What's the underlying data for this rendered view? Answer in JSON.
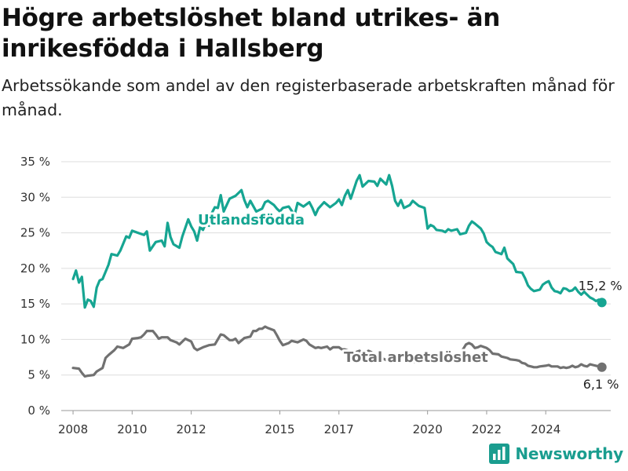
{
  "header": {
    "title": "Högre arbetslöshet bland utrikes- än inrikesfödda i Hallsberg",
    "subtitle": "Arbetssökande som andel av den registerbaserade arbetskraften månad för månad."
  },
  "brand": {
    "name": "Newsworthy",
    "icon": "bar-chart-logo-icon",
    "color": "#1a9d8f"
  },
  "chart_data": {
    "type": "line",
    "ylim": [
      0,
      35
    ],
    "xlim": [
      2007.6,
      2026.2
    ],
    "y_ticks": [
      0,
      5,
      10,
      15,
      20,
      25,
      30,
      35
    ],
    "y_tick_labels": [
      "0 %",
      "5 %",
      "10 %",
      "15 %",
      "20 %",
      "25 %",
      "30 %",
      "35 %"
    ],
    "x_ticks": [
      2008,
      2010,
      2012,
      2015,
      2017,
      2020,
      2022,
      2024
    ],
    "x_tick_labels": [
      "2008",
      "2010",
      "2012",
      "2015",
      "2017",
      "2020",
      "2022",
      "2024"
    ],
    "grid": true,
    "series": [
      {
        "name": "Utlandsfödda",
        "color": "#16a592",
        "end_label": "15,2 %",
        "points": [
          [
            2008.0,
            18.5
          ],
          [
            2008.1,
            19.7
          ],
          [
            2008.2,
            18.0
          ],
          [
            2008.3,
            18.8
          ],
          [
            2008.4,
            14.5
          ],
          [
            2008.5,
            15.6
          ],
          [
            2008.6,
            15.4
          ],
          [
            2008.7,
            14.6
          ],
          [
            2008.8,
            17.3
          ],
          [
            2008.9,
            18.3
          ],
          [
            2009.0,
            18.5
          ],
          [
            2009.2,
            20.5
          ],
          [
            2009.3,
            22.0
          ],
          [
            2009.5,
            21.8
          ],
          [
            2009.6,
            22.5
          ],
          [
            2009.8,
            24.5
          ],
          [
            2009.9,
            24.3
          ],
          [
            2010.0,
            25.3
          ],
          [
            2010.2,
            25.0
          ],
          [
            2010.4,
            24.7
          ],
          [
            2010.5,
            25.2
          ],
          [
            2010.6,
            22.5
          ],
          [
            2010.8,
            23.7
          ],
          [
            2011.0,
            23.9
          ],
          [
            2011.1,
            23.1
          ],
          [
            2011.2,
            26.4
          ],
          [
            2011.3,
            24.4
          ],
          [
            2011.4,
            23.4
          ],
          [
            2011.6,
            22.9
          ],
          [
            2011.7,
            24.5
          ],
          [
            2011.9,
            26.9
          ],
          [
            2012.0,
            25.9
          ],
          [
            2012.1,
            25.2
          ],
          [
            2012.2,
            23.9
          ],
          [
            2012.3,
            25.8
          ],
          [
            2012.4,
            25.4
          ],
          [
            2012.5,
            26.4
          ],
          [
            2012.6,
            26.0
          ],
          [
            2012.7,
            27.8
          ],
          [
            2012.8,
            28.6
          ],
          [
            2012.9,
            28.5
          ],
          [
            2013.0,
            30.3
          ],
          [
            2013.1,
            28.0
          ],
          [
            2013.3,
            29.8
          ],
          [
            2013.5,
            30.2
          ],
          [
            2013.6,
            30.6
          ],
          [
            2013.7,
            31.0
          ],
          [
            2013.8,
            29.6
          ],
          [
            2013.9,
            28.6
          ],
          [
            2014.0,
            29.5
          ],
          [
            2014.2,
            28.0
          ],
          [
            2014.4,
            28.4
          ],
          [
            2014.5,
            29.3
          ],
          [
            2014.6,
            29.5
          ],
          [
            2014.8,
            28.9
          ],
          [
            2014.9,
            28.4
          ],
          [
            2015.0,
            28.0
          ],
          [
            2015.1,
            28.5
          ],
          [
            2015.3,
            28.7
          ],
          [
            2015.5,
            27.5
          ],
          [
            2015.6,
            29.2
          ],
          [
            2015.8,
            28.7
          ],
          [
            2016.0,
            29.3
          ],
          [
            2016.1,
            28.5
          ],
          [
            2016.2,
            27.5
          ],
          [
            2016.3,
            28.4
          ],
          [
            2016.5,
            29.3
          ],
          [
            2016.7,
            28.6
          ],
          [
            2016.9,
            29.2
          ],
          [
            2017.0,
            29.7
          ],
          [
            2017.1,
            28.9
          ],
          [
            2017.2,
            30.2
          ],
          [
            2017.3,
            31.0
          ],
          [
            2017.4,
            29.8
          ],
          [
            2017.6,
            32.3
          ],
          [
            2017.7,
            33.1
          ],
          [
            2017.8,
            31.5
          ],
          [
            2018.0,
            32.3
          ],
          [
            2018.2,
            32.2
          ],
          [
            2018.3,
            31.6
          ],
          [
            2018.4,
            32.6
          ],
          [
            2018.6,
            31.8
          ],
          [
            2018.7,
            33.1
          ],
          [
            2018.8,
            31.6
          ],
          [
            2018.9,
            29.5
          ],
          [
            2019.0,
            28.8
          ],
          [
            2019.1,
            29.6
          ],
          [
            2019.2,
            28.5
          ],
          [
            2019.4,
            28.9
          ],
          [
            2019.5,
            29.5
          ],
          [
            2019.7,
            28.8
          ],
          [
            2019.9,
            28.5
          ],
          [
            2020.0,
            25.6
          ],
          [
            2020.1,
            26.1
          ],
          [
            2020.2,
            25.9
          ],
          [
            2020.3,
            25.4
          ],
          [
            2020.5,
            25.3
          ],
          [
            2020.6,
            25.1
          ],
          [
            2020.7,
            25.5
          ],
          [
            2020.8,
            25.3
          ],
          [
            2021.0,
            25.5
          ],
          [
            2021.1,
            24.8
          ],
          [
            2021.3,
            25.0
          ],
          [
            2021.4,
            26.0
          ],
          [
            2021.5,
            26.6
          ],
          [
            2021.6,
            26.3
          ],
          [
            2021.8,
            25.6
          ],
          [
            2021.9,
            24.9
          ],
          [
            2022.0,
            23.7
          ],
          [
            2022.1,
            23.3
          ],
          [
            2022.2,
            23.0
          ],
          [
            2022.3,
            22.3
          ],
          [
            2022.5,
            22.0
          ],
          [
            2022.6,
            22.9
          ],
          [
            2022.7,
            21.4
          ],
          [
            2022.8,
            21.0
          ],
          [
            2022.9,
            20.6
          ],
          [
            2023.0,
            19.5
          ],
          [
            2023.2,
            19.4
          ],
          [
            2023.3,
            18.6
          ],
          [
            2023.4,
            17.6
          ],
          [
            2023.5,
            17.1
          ],
          [
            2023.6,
            16.8
          ],
          [
            2023.7,
            16.9
          ],
          [
            2023.8,
            17.0
          ],
          [
            2023.9,
            17.7
          ],
          [
            2024.0,
            18.0
          ],
          [
            2024.1,
            18.2
          ],
          [
            2024.2,
            17.3
          ],
          [
            2024.3,
            16.8
          ],
          [
            2024.4,
            16.7
          ],
          [
            2024.5,
            16.5
          ],
          [
            2024.6,
            17.2
          ],
          [
            2024.7,
            17.1
          ],
          [
            2024.8,
            16.8
          ],
          [
            2024.9,
            16.9
          ],
          [
            2025.0,
            17.3
          ],
          [
            2025.1,
            16.7
          ],
          [
            2025.2,
            16.3
          ],
          [
            2025.3,
            16.7
          ],
          [
            2025.4,
            16.3
          ],
          [
            2025.5,
            15.9
          ],
          [
            2025.6,
            15.7
          ],
          [
            2025.7,
            15.4
          ],
          [
            2025.8,
            15.6
          ],
          [
            2025.9,
            15.2
          ]
        ]
      },
      {
        "name": "Total arbetslöshet",
        "color": "#717171",
        "end_label": "6,1 %",
        "points": [
          [
            2008.0,
            6.0
          ],
          [
            2008.2,
            5.9
          ],
          [
            2008.3,
            5.3
          ],
          [
            2008.4,
            4.8
          ],
          [
            2008.5,
            4.9
          ],
          [
            2008.7,
            5.0
          ],
          [
            2008.8,
            5.5
          ],
          [
            2009.0,
            6.0
          ],
          [
            2009.1,
            7.4
          ],
          [
            2009.2,
            7.8
          ],
          [
            2009.4,
            8.5
          ],
          [
            2009.5,
            9.0
          ],
          [
            2009.7,
            8.8
          ],
          [
            2009.9,
            9.3
          ],
          [
            2010.0,
            10.1
          ],
          [
            2010.2,
            10.2
          ],
          [
            2010.3,
            10.3
          ],
          [
            2010.4,
            10.7
          ],
          [
            2010.5,
            11.2
          ],
          [
            2010.7,
            11.2
          ],
          [
            2010.8,
            10.7
          ],
          [
            2010.9,
            10.1
          ],
          [
            2011.0,
            10.3
          ],
          [
            2011.2,
            10.3
          ],
          [
            2011.3,
            9.9
          ],
          [
            2011.5,
            9.6
          ],
          [
            2011.6,
            9.3
          ],
          [
            2011.7,
            9.7
          ],
          [
            2011.8,
            10.1
          ],
          [
            2012.0,
            9.7
          ],
          [
            2012.1,
            8.8
          ],
          [
            2012.2,
            8.5
          ],
          [
            2012.4,
            8.9
          ],
          [
            2012.6,
            9.2
          ],
          [
            2012.8,
            9.3
          ],
          [
            2013.0,
            10.7
          ],
          [
            2013.1,
            10.6
          ],
          [
            2013.3,
            9.9
          ],
          [
            2013.4,
            9.9
          ],
          [
            2013.5,
            10.1
          ],
          [
            2013.6,
            9.5
          ],
          [
            2013.8,
            10.2
          ],
          [
            2014.0,
            10.4
          ],
          [
            2014.1,
            11.2
          ],
          [
            2014.2,
            11.2
          ],
          [
            2014.3,
            11.5
          ],
          [
            2014.4,
            11.5
          ],
          [
            2014.5,
            11.8
          ],
          [
            2014.6,
            11.6
          ],
          [
            2014.8,
            11.3
          ],
          [
            2014.9,
            10.6
          ],
          [
            2015.0,
            9.8
          ],
          [
            2015.1,
            9.2
          ],
          [
            2015.3,
            9.5
          ],
          [
            2015.4,
            9.8
          ],
          [
            2015.6,
            9.6
          ],
          [
            2015.8,
            10.0
          ],
          [
            2015.9,
            9.8
          ],
          [
            2016.0,
            9.3
          ],
          [
            2016.2,
            8.8
          ],
          [
            2016.3,
            8.9
          ],
          [
            2016.4,
            8.8
          ],
          [
            2016.6,
            9.0
          ],
          [
            2016.7,
            8.6
          ],
          [
            2016.8,
            8.9
          ],
          [
            2017.0,
            8.9
          ],
          [
            2017.1,
            8.6
          ],
          [
            2017.2,
            8.6
          ],
          [
            2017.4,
            8.3
          ],
          [
            2017.5,
            8.1
          ],
          [
            2017.7,
            8.4
          ],
          [
            2017.8,
            7.9
          ],
          [
            2018.0,
            8.4
          ],
          [
            2018.1,
            8.2
          ],
          [
            2018.2,
            7.8
          ],
          [
            2018.4,
            7.3
          ],
          [
            2018.5,
            7.3
          ],
          [
            2018.6,
            7.1
          ],
          [
            2018.7,
            7.3
          ],
          [
            2018.9,
            7.4
          ],
          [
            2019.0,
            7.5
          ],
          [
            2019.2,
            7.4
          ],
          [
            2019.4,
            7.2
          ],
          [
            2019.5,
            6.9
          ],
          [
            2019.6,
            6.8
          ],
          [
            2019.8,
            6.9
          ],
          [
            2020.0,
            7.0
          ],
          [
            2020.2,
            7.3
          ],
          [
            2020.3,
            7.2
          ],
          [
            2020.5,
            7.1
          ],
          [
            2020.7,
            7.4
          ],
          [
            2020.9,
            7.6
          ],
          [
            2021.0,
            7.8
          ],
          [
            2021.1,
            7.6
          ],
          [
            2021.2,
            8.6
          ],
          [
            2021.3,
            9.3
          ],
          [
            2021.4,
            9.5
          ],
          [
            2021.5,
            9.3
          ],
          [
            2021.6,
            8.8
          ],
          [
            2021.7,
            8.9
          ],
          [
            2021.8,
            9.1
          ],
          [
            2022.0,
            8.8
          ],
          [
            2022.1,
            8.5
          ],
          [
            2022.2,
            8.0
          ],
          [
            2022.4,
            7.9
          ],
          [
            2022.5,
            7.6
          ],
          [
            2022.7,
            7.4
          ],
          [
            2022.8,
            7.2
          ],
          [
            2023.0,
            7.1
          ],
          [
            2023.1,
            7.0
          ],
          [
            2023.2,
            6.7
          ],
          [
            2023.3,
            6.6
          ],
          [
            2023.4,
            6.3
          ],
          [
            2023.5,
            6.2
          ],
          [
            2023.6,
            6.1
          ],
          [
            2023.7,
            6.1
          ],
          [
            2023.8,
            6.2
          ],
          [
            2024.0,
            6.3
          ],
          [
            2024.1,
            6.4
          ],
          [
            2024.2,
            6.2
          ],
          [
            2024.4,
            6.2
          ],
          [
            2024.5,
            6.0
          ],
          [
            2024.6,
            6.1
          ],
          [
            2024.7,
            6.0
          ],
          [
            2024.8,
            6.1
          ],
          [
            2024.9,
            6.3
          ],
          [
            2025.0,
            6.1
          ],
          [
            2025.1,
            6.2
          ],
          [
            2025.2,
            6.5
          ],
          [
            2025.3,
            6.3
          ],
          [
            2025.4,
            6.2
          ],
          [
            2025.5,
            6.5
          ],
          [
            2025.6,
            6.4
          ],
          [
            2025.7,
            6.3
          ],
          [
            2025.8,
            6.2
          ],
          [
            2025.9,
            6.1
          ]
        ]
      }
    ]
  }
}
